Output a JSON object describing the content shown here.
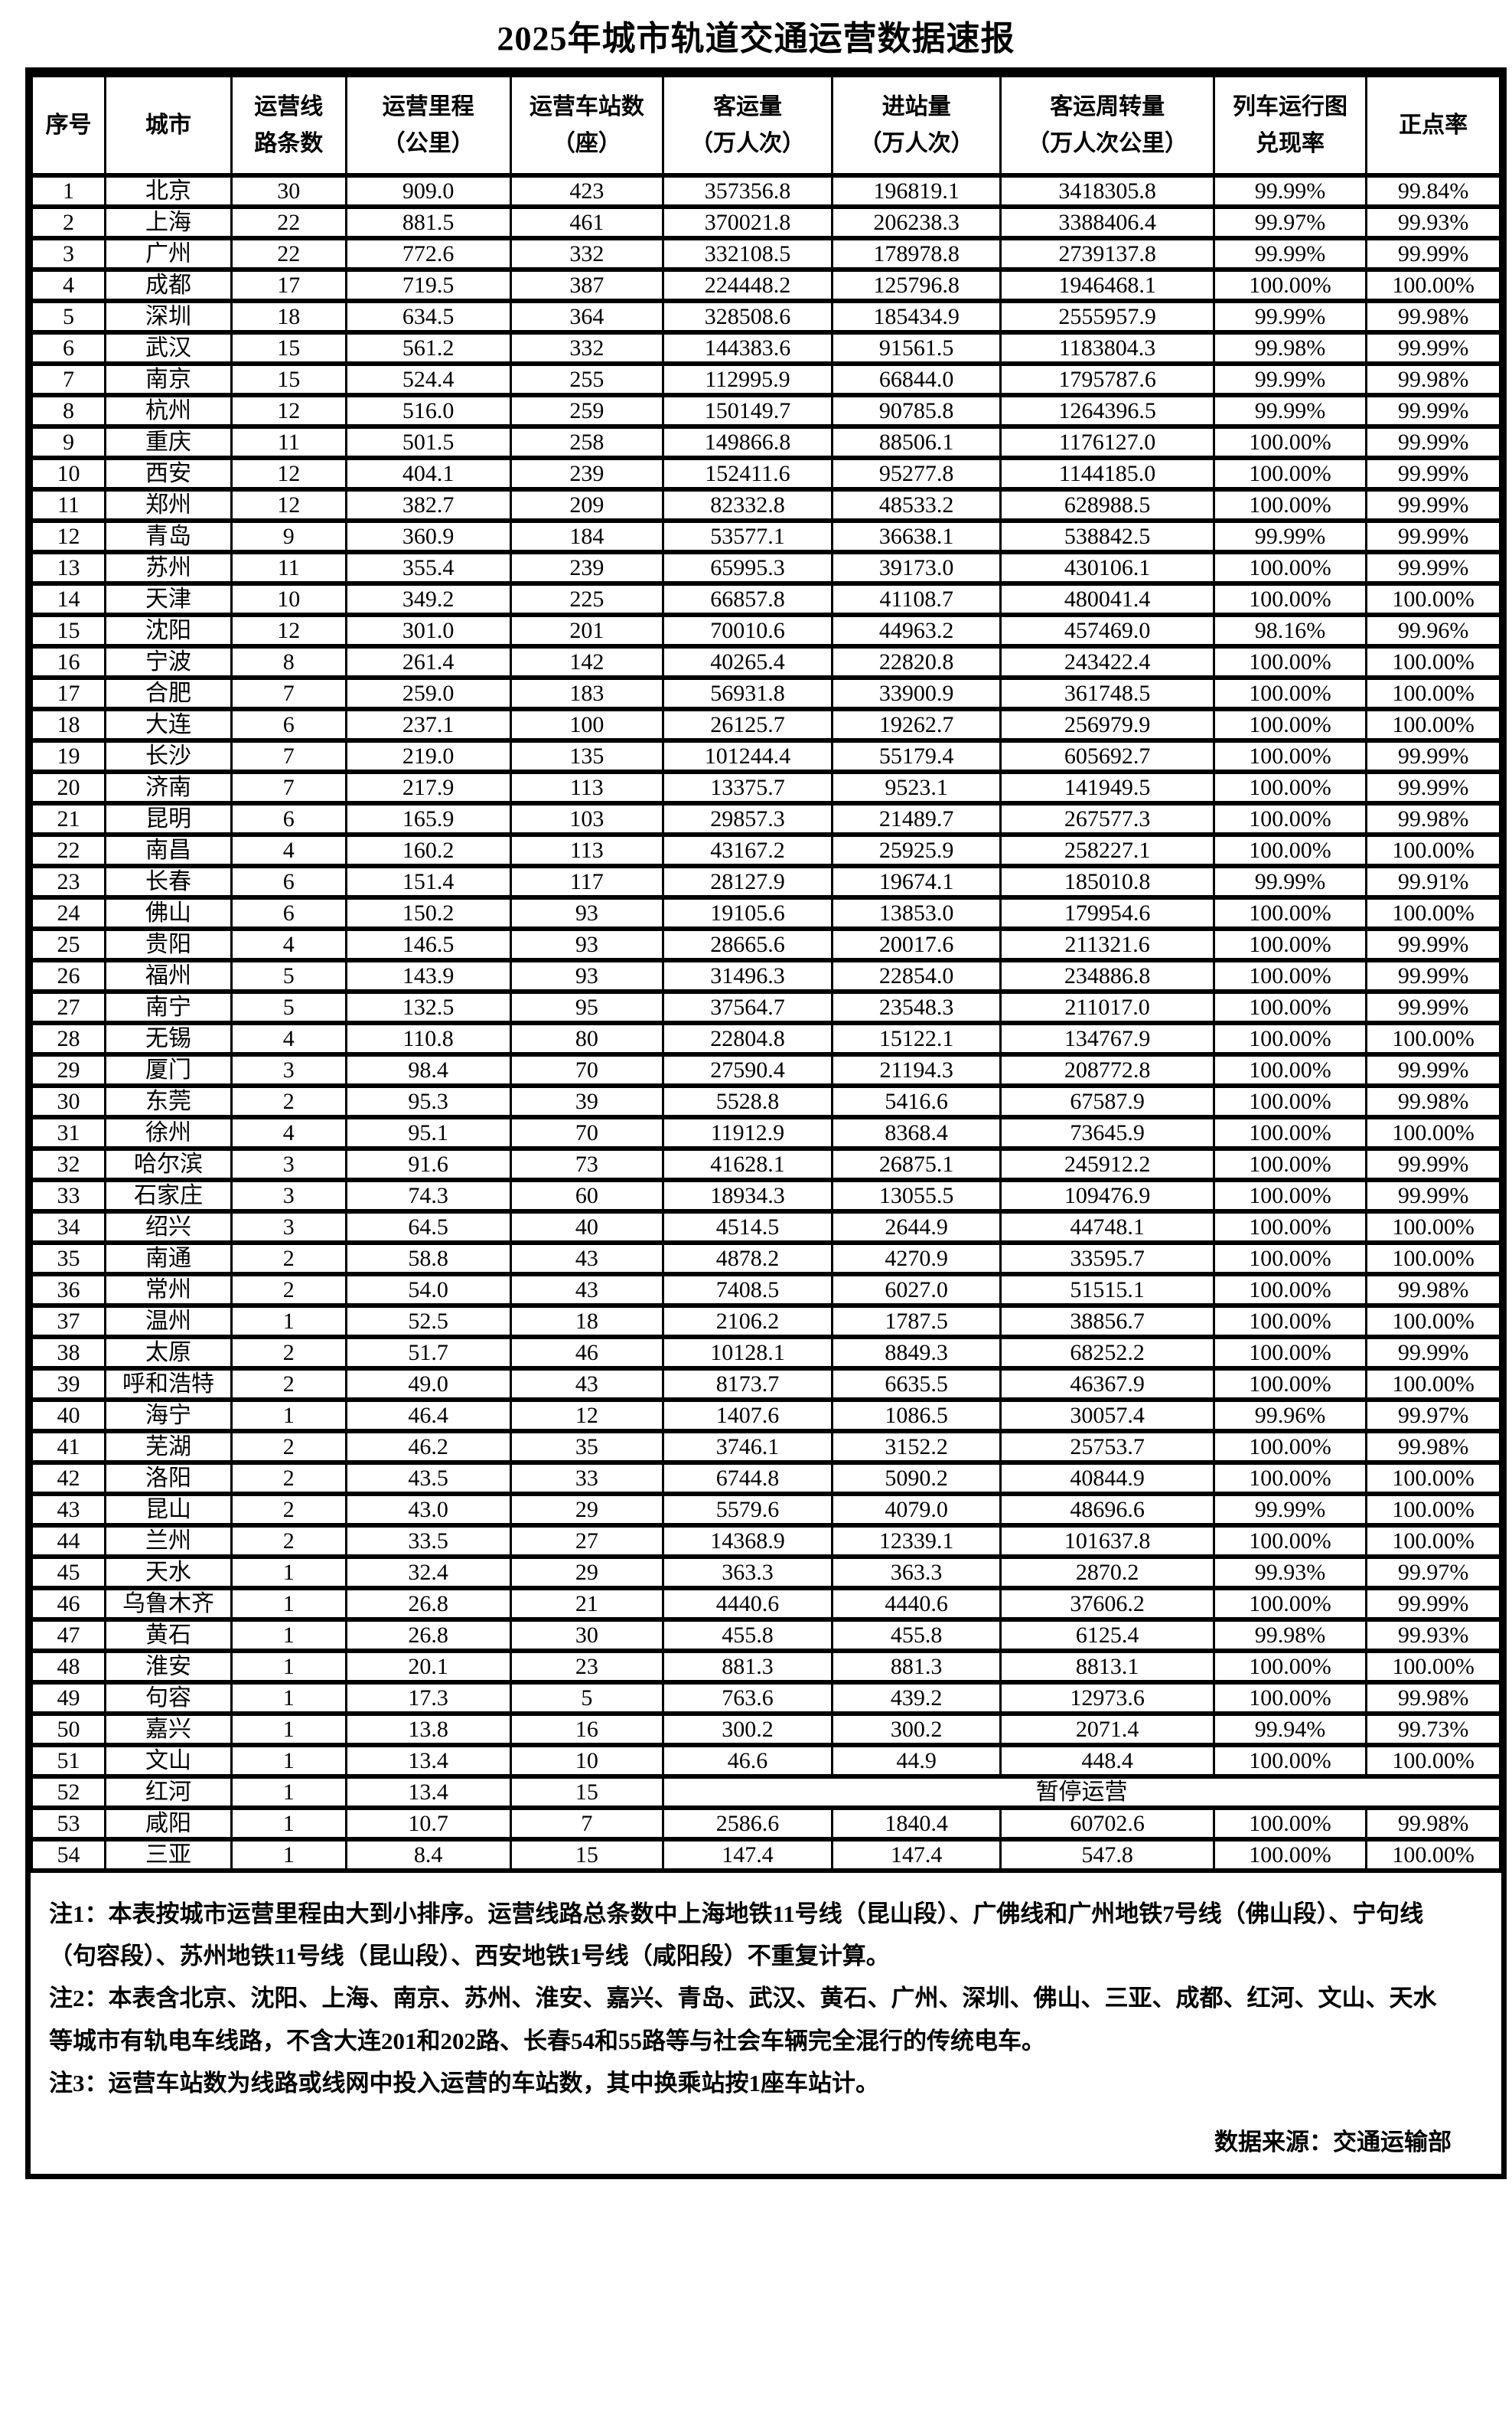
{
  "title": "2025年城市轨道交通运营数据速报",
  "table": {
    "columns": [
      "序号",
      "城市",
      "运营线\n路条数",
      "运营里程\n（公里）",
      "运营车站数\n（座）",
      "客运量\n（万人次）",
      "进站量\n（万人次）",
      "客运周转量\n（万人次公里）",
      "列车运行图\n兑现率",
      "正点率"
    ],
    "suspended_label": "暂停运营",
    "rows": [
      [
        "1",
        "北京",
        "30",
        "909.0",
        "423",
        "357356.8",
        "196819.1",
        "3418305.8",
        "99.99%",
        "99.84%"
      ],
      [
        "2",
        "上海",
        "22",
        "881.5",
        "461",
        "370021.8",
        "206238.3",
        "3388406.4",
        "99.97%",
        "99.93%"
      ],
      [
        "3",
        "广州",
        "22",
        "772.6",
        "332",
        "332108.5",
        "178978.8",
        "2739137.8",
        "99.99%",
        "99.99%"
      ],
      [
        "4",
        "成都",
        "17",
        "719.5",
        "387",
        "224448.2",
        "125796.8",
        "1946468.1",
        "100.00%",
        "100.00%"
      ],
      [
        "5",
        "深圳",
        "18",
        "634.5",
        "364",
        "328508.6",
        "185434.9",
        "2555957.9",
        "99.99%",
        "99.98%"
      ],
      [
        "6",
        "武汉",
        "15",
        "561.2",
        "332",
        "144383.6",
        "91561.5",
        "1183804.3",
        "99.98%",
        "99.99%"
      ],
      [
        "7",
        "南京",
        "15",
        "524.4",
        "255",
        "112995.9",
        "66844.0",
        "1795787.6",
        "99.99%",
        "99.98%"
      ],
      [
        "8",
        "杭州",
        "12",
        "516.0",
        "259",
        "150149.7",
        "90785.8",
        "1264396.5",
        "99.99%",
        "99.99%"
      ],
      [
        "9",
        "重庆",
        "11",
        "501.5",
        "258",
        "149866.8",
        "88506.1",
        "1176127.0",
        "100.00%",
        "99.99%"
      ],
      [
        "10",
        "西安",
        "12",
        "404.1",
        "239",
        "152411.6",
        "95277.8",
        "1144185.0",
        "100.00%",
        "99.99%"
      ],
      [
        "11",
        "郑州",
        "12",
        "382.7",
        "209",
        "82332.8",
        "48533.2",
        "628988.5",
        "100.00%",
        "99.99%"
      ],
      [
        "12",
        "青岛",
        "9",
        "360.9",
        "184",
        "53577.1",
        "36638.1",
        "538842.5",
        "99.99%",
        "99.99%"
      ],
      [
        "13",
        "苏州",
        "11",
        "355.4",
        "239",
        "65995.3",
        "39173.0",
        "430106.1",
        "100.00%",
        "99.99%"
      ],
      [
        "14",
        "天津",
        "10",
        "349.2",
        "225",
        "66857.8",
        "41108.7",
        "480041.4",
        "100.00%",
        "100.00%"
      ],
      [
        "15",
        "沈阳",
        "12",
        "301.0",
        "201",
        "70010.6",
        "44963.2",
        "457469.0",
        "98.16%",
        "99.96%"
      ],
      [
        "16",
        "宁波",
        "8",
        "261.4",
        "142",
        "40265.4",
        "22820.8",
        "243422.4",
        "100.00%",
        "100.00%"
      ],
      [
        "17",
        "合肥",
        "7",
        "259.0",
        "183",
        "56931.8",
        "33900.9",
        "361748.5",
        "100.00%",
        "100.00%"
      ],
      [
        "18",
        "大连",
        "6",
        "237.1",
        "100",
        "26125.7",
        "19262.7",
        "256979.9",
        "100.00%",
        "100.00%"
      ],
      [
        "19",
        "长沙",
        "7",
        "219.0",
        "135",
        "101244.4",
        "55179.4",
        "605692.7",
        "100.00%",
        "99.99%"
      ],
      [
        "20",
        "济南",
        "7",
        "217.9",
        "113",
        "13375.7",
        "9523.1",
        "141949.5",
        "100.00%",
        "99.99%"
      ],
      [
        "21",
        "昆明",
        "6",
        "165.9",
        "103",
        "29857.3",
        "21489.7",
        "267577.3",
        "100.00%",
        "99.98%"
      ],
      [
        "22",
        "南昌",
        "4",
        "160.2",
        "113",
        "43167.2",
        "25925.9",
        "258227.1",
        "100.00%",
        "100.00%"
      ],
      [
        "23",
        "长春",
        "6",
        "151.4",
        "117",
        "28127.9",
        "19674.1",
        "185010.8",
        "99.99%",
        "99.91%"
      ],
      [
        "24",
        "佛山",
        "6",
        "150.2",
        "93",
        "19105.6",
        "13853.0",
        "179954.6",
        "100.00%",
        "100.00%"
      ],
      [
        "25",
        "贵阳",
        "4",
        "146.5",
        "93",
        "28665.6",
        "20017.6",
        "211321.6",
        "100.00%",
        "99.99%"
      ],
      [
        "26",
        "福州",
        "5",
        "143.9",
        "93",
        "31496.3",
        "22854.0",
        "234886.8",
        "100.00%",
        "99.99%"
      ],
      [
        "27",
        "南宁",
        "5",
        "132.5",
        "95",
        "37564.7",
        "23548.3",
        "211017.0",
        "100.00%",
        "99.99%"
      ],
      [
        "28",
        "无锡",
        "4",
        "110.8",
        "80",
        "22804.8",
        "15122.1",
        "134767.9",
        "100.00%",
        "100.00%"
      ],
      [
        "29",
        "厦门",
        "3",
        "98.4",
        "70",
        "27590.4",
        "21194.3",
        "208772.8",
        "100.00%",
        "99.99%"
      ],
      [
        "30",
        "东莞",
        "2",
        "95.3",
        "39",
        "5528.8",
        "5416.6",
        "67587.9",
        "100.00%",
        "99.98%"
      ],
      [
        "31",
        "徐州",
        "4",
        "95.1",
        "70",
        "11912.9",
        "8368.4",
        "73645.9",
        "100.00%",
        "100.00%"
      ],
      [
        "32",
        "哈尔滨",
        "3",
        "91.6",
        "73",
        "41628.1",
        "26875.1",
        "245912.2",
        "100.00%",
        "99.99%"
      ],
      [
        "33",
        "石家庄",
        "3",
        "74.3",
        "60",
        "18934.3",
        "13055.5",
        "109476.9",
        "100.00%",
        "99.99%"
      ],
      [
        "34",
        "绍兴",
        "3",
        "64.5",
        "40",
        "4514.5",
        "2644.9",
        "44748.1",
        "100.00%",
        "100.00%"
      ],
      [
        "35",
        "南通",
        "2",
        "58.8",
        "43",
        "4878.2",
        "4270.9",
        "33595.7",
        "100.00%",
        "100.00%"
      ],
      [
        "36",
        "常州",
        "2",
        "54.0",
        "43",
        "7408.5",
        "6027.0",
        "51515.1",
        "100.00%",
        "99.98%"
      ],
      [
        "37",
        "温州",
        "1",
        "52.5",
        "18",
        "2106.2",
        "1787.5",
        "38856.7",
        "100.00%",
        "100.00%"
      ],
      [
        "38",
        "太原",
        "2",
        "51.7",
        "46",
        "10128.1",
        "8849.3",
        "68252.2",
        "100.00%",
        "99.99%"
      ],
      [
        "39",
        "呼和浩特",
        "2",
        "49.0",
        "43",
        "8173.7",
        "6635.5",
        "46367.9",
        "100.00%",
        "100.00%"
      ],
      [
        "40",
        "海宁",
        "1",
        "46.4",
        "12",
        "1407.6",
        "1086.5",
        "30057.4",
        "99.96%",
        "99.97%"
      ],
      [
        "41",
        "芜湖",
        "2",
        "46.2",
        "35",
        "3746.1",
        "3152.2",
        "25753.7",
        "100.00%",
        "99.98%"
      ],
      [
        "42",
        "洛阳",
        "2",
        "43.5",
        "33",
        "6744.8",
        "5090.2",
        "40844.9",
        "100.00%",
        "100.00%"
      ],
      [
        "43",
        "昆山",
        "2",
        "43.0",
        "29",
        "5579.6",
        "4079.0",
        "48696.6",
        "99.99%",
        "100.00%"
      ],
      [
        "44",
        "兰州",
        "2",
        "33.5",
        "27",
        "14368.9",
        "12339.1",
        "101637.8",
        "100.00%",
        "100.00%"
      ],
      [
        "45",
        "天水",
        "1",
        "32.4",
        "29",
        "363.3",
        "363.3",
        "2870.2",
        "99.93%",
        "99.97%"
      ],
      [
        "46",
        "乌鲁木齐",
        "1",
        "26.8",
        "21",
        "4440.6",
        "4440.6",
        "37606.2",
        "100.00%",
        "99.99%"
      ],
      [
        "47",
        "黄石",
        "1",
        "26.8",
        "30",
        "455.8",
        "455.8",
        "6125.4",
        "99.98%",
        "99.93%"
      ],
      [
        "48",
        "淮安",
        "1",
        "20.1",
        "23",
        "881.3",
        "881.3",
        "8813.1",
        "100.00%",
        "100.00%"
      ],
      [
        "49",
        "句容",
        "1",
        "17.3",
        "5",
        "763.6",
        "439.2",
        "12973.6",
        "100.00%",
        "99.98%"
      ],
      [
        "50",
        "嘉兴",
        "1",
        "13.8",
        "16",
        "300.2",
        "300.2",
        "2071.4",
        "99.94%",
        "99.73%"
      ],
      [
        "51",
        "文山",
        "1",
        "13.4",
        "10",
        "46.6",
        "44.9",
        "448.4",
        "100.00%",
        "100.00%"
      ],
      [
        "52",
        "红河",
        "1",
        "13.4",
        "15",
        {
          "colspan": 5,
          "text": "暂停运营"
        }
      ],
      [
        "53",
        "咸阳",
        "1",
        "10.7",
        "7",
        "2586.6",
        "1840.4",
        "60702.6",
        "100.00%",
        "99.98%"
      ],
      [
        "54",
        "三亚",
        "1",
        "8.4",
        "15",
        "147.4",
        "147.4",
        "547.8",
        "100.00%",
        "100.00%"
      ]
    ]
  },
  "notes": [
    {
      "label": "注1：",
      "text": "本表按城市运营里程由大到小排序。运营线路总条数中上海地铁11号线（昆山段）、广佛线和广州地铁7号线（佛山段）、宁句线（句容段）、苏州地铁11号线（昆山段）、西安地铁1号线（咸阳段）不重复计算。"
    },
    {
      "label": "注2：",
      "text": "本表含北京、沈阳、上海、南京、苏州、淮安、嘉兴、青岛、武汉、黄石、广州、深圳、佛山、三亚、成都、红河、文山、天水等城市有轨电车线路，不含大连201和202路、长春54和55路等与社会车辆完全混行的传统电车。"
    },
    {
      "label": "注3：",
      "text": "运营车站数为线路或线网中投入运营的车站数，其中换乘站按1座车站计。"
    }
  ],
  "source": "数据来源：交通运输部",
  "colors": {
    "border": "#000000",
    "text": "#000000",
    "background": "#ffffff"
  }
}
